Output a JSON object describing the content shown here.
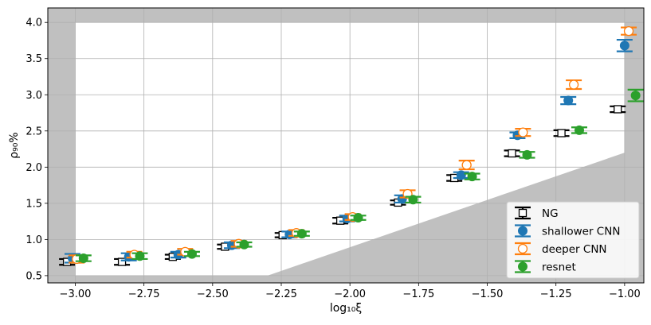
{
  "chart_data": {
    "type": "scatter",
    "xlabel": "log₁₀ξ",
    "ylabel": "ρ₉₀%",
    "xlim": [
      -3.1,
      -0.93
    ],
    "ylim": [
      0.4,
      4.2
    ],
    "xticks": [
      -3.0,
      -2.75,
      -2.5,
      -2.25,
      -2.0,
      -1.75,
      -1.5,
      -1.25,
      -1.0
    ],
    "xtick_labels": [
      "−3.00",
      "−2.75",
      "−2.50",
      "−2.25",
      "−2.00",
      "−1.75",
      "−1.50",
      "−1.25",
      "−1.00"
    ],
    "yticks": [
      0.5,
      1.0,
      1.5,
      2.0,
      2.5,
      3.0,
      3.5,
      4.0
    ],
    "ytick_labels": [
      "0.5",
      "1.0",
      "1.5",
      "2.0",
      "2.5",
      "3.0",
      "3.5",
      "4.0"
    ],
    "grid": true,
    "legend_position": "bottom-right",
    "shaded_regions": [
      {
        "points": [
          [
            -3.1,
            4.2
          ],
          [
            -0.93,
            4.2
          ],
          [
            -0.93,
            4.0
          ],
          [
            -3.1,
            4.0
          ]
        ]
      },
      {
        "points": [
          [
            -3.1,
            4.2
          ],
          [
            -3.0,
            4.2
          ],
          [
            -3.0,
            0.4
          ],
          [
            -3.1,
            0.4
          ]
        ]
      },
      {
        "points": [
          [
            -1.0,
            4.2
          ],
          [
            -0.93,
            4.2
          ],
          [
            -0.93,
            0.4
          ],
          [
            -1.0,
            0.4
          ]
        ]
      },
      {
        "points": [
          [
            -3.1,
            0.5
          ],
          [
            -0.93,
            0.5
          ],
          [
            -0.93,
            0.4
          ],
          [
            -3.1,
            0.4
          ]
        ]
      },
      {
        "points": [
          [
            -2.3,
            0.5
          ],
          [
            -1.0,
            2.2
          ],
          [
            -1.0,
            0.4
          ],
          [
            -2.3,
            0.4
          ]
        ]
      }
    ],
    "series": [
      {
        "name": "NG",
        "color": "#000000",
        "marker": "square-open",
        "x": [
          -3.03,
          -2.83,
          -2.645,
          -2.455,
          -2.245,
          -2.035,
          -1.825,
          -1.62,
          -1.41,
          -1.23,
          -1.025
        ],
        "y": [
          0.69,
          0.69,
          0.76,
          0.9,
          1.06,
          1.26,
          1.51,
          1.85,
          2.19,
          2.47,
          2.8
        ],
        "err": [
          0.04,
          0.04,
          0.03,
          0.03,
          0.03,
          0.04,
          0.03,
          0.04,
          0.04,
          0.04,
          0.04
        ]
      },
      {
        "name": "shallower CNN",
        "color": "#1f77b4",
        "marker": "circle-filled",
        "x": [
          -3.01,
          -2.805,
          -2.625,
          -2.43,
          -2.22,
          -2.01,
          -1.81,
          -1.595,
          -1.39,
          -1.205,
          -1.0
        ],
        "y": [
          0.74,
          0.76,
          0.79,
          0.92,
          1.07,
          1.29,
          1.56,
          1.89,
          2.44,
          2.92,
          3.68
        ],
        "err": [
          0.06,
          0.05,
          0.04,
          0.04,
          0.04,
          0.04,
          0.05,
          0.04,
          0.04,
          0.05,
          0.08
        ]
      },
      {
        "name": "deeper CNN",
        "color": "#ff7f0e",
        "marker": "circle-open",
        "x": [
          -2.995,
          -2.785,
          -2.6,
          -2.405,
          -2.195,
          -1.99,
          -1.79,
          -1.575,
          -1.37,
          -1.185,
          -0.985
        ],
        "y": [
          0.73,
          0.79,
          0.83,
          0.94,
          1.09,
          1.31,
          1.63,
          2.03,
          2.48,
          3.14,
          3.88
        ],
        "err": [
          0.05,
          0.04,
          0.04,
          0.04,
          0.04,
          0.04,
          0.05,
          0.06,
          0.05,
          0.06,
          0.05
        ]
      },
      {
        "name": "resnet",
        "color": "#2ca02c",
        "marker": "circle-filled",
        "x": [
          -2.97,
          -2.765,
          -2.575,
          -2.385,
          -2.175,
          -1.97,
          -1.77,
          -1.555,
          -1.355,
          -1.165,
          -0.96
        ],
        "y": [
          0.74,
          0.77,
          0.8,
          0.93,
          1.08,
          1.3,
          1.55,
          1.87,
          2.17,
          2.51,
          2.99
        ],
        "err": [
          0.04,
          0.04,
          0.03,
          0.03,
          0.03,
          0.03,
          0.04,
          0.04,
          0.04,
          0.04,
          0.08
        ]
      }
    ]
  }
}
